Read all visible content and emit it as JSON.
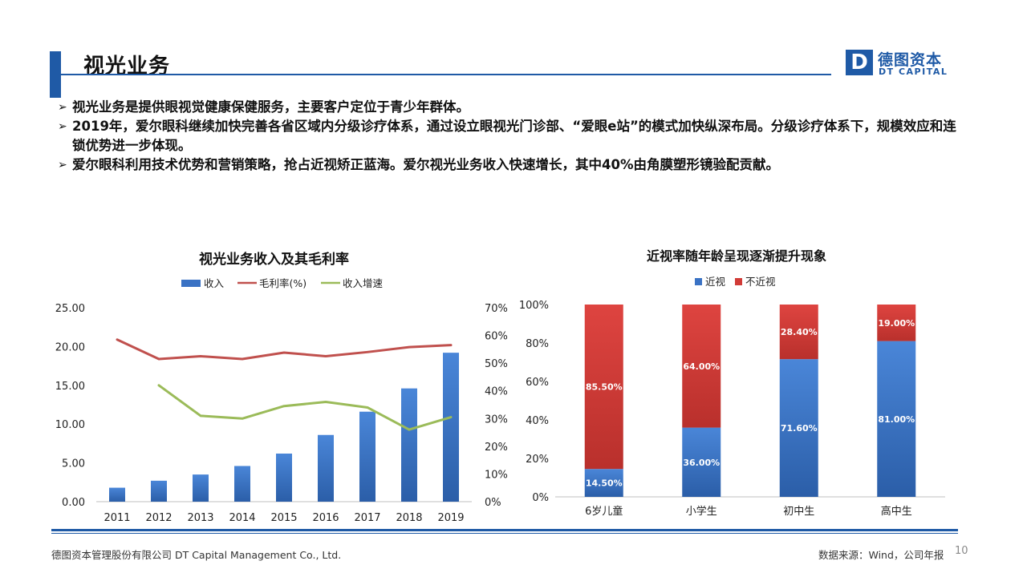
{
  "header": {
    "title": "视光业务",
    "logo_mark": "D",
    "logo_cn": "德图资本",
    "logo_en": "DT CAPITAL"
  },
  "bullets": [
    {
      "mark": "➢",
      "text": "视光业务是提供眼视觉健康保健服务，主要客户定位于青少年群体。"
    },
    {
      "mark": "➢",
      "text": "2019年，爱尔眼科继续加快完善各省区域内分级诊疗体系，通过设立眼视光门诊部、“爱眼e站”的模式加快纵深布局。分级诊疗体系下，规模效应和连锁优势进一步体现。"
    },
    {
      "mark": "➢",
      "text": "爱尔眼科利用技术优势和营销策略，抢占近视矫正蓝海。爱尔视光业务收入快速增长，其中40%由角膜塑形镜验配贡献。"
    }
  ],
  "colors": {
    "accent": "#1f5aa6",
    "bar_blue": "#3a72c4",
    "bar_red": "#d13b37",
    "line_red": "#c0504d",
    "line_green": "#9bbb59"
  },
  "chart_data": [
    {
      "type": "bar",
      "title": "视光业务收入及其毛利率",
      "categories": [
        "2011",
        "2012",
        "2013",
        "2014",
        "2015",
        "2016",
        "2017",
        "2018",
        "2019"
      ],
      "y_ticks": [
        "0.00",
        "5.00",
        "10.00",
        "15.00",
        "20.00",
        "25.00"
      ],
      "y2_ticks": [
        "0%",
        "10%",
        "20%",
        "30%",
        "40%",
        "50%",
        "60%",
        "70%"
      ],
      "ylim": [
        0,
        25
      ],
      "y2lim": [
        0,
        70
      ],
      "legend_position": "top",
      "series": [
        {
          "name": "收入",
          "type": "bar",
          "axis": "left",
          "values": [
            1.8,
            2.7,
            3.5,
            4.6,
            6.2,
            8.6,
            11.6,
            14.6,
            19.2
          ]
        },
        {
          "name": "毛利率(%)",
          "type": "line",
          "axis": "right",
          "values": [
            58.5,
            51.5,
            52.5,
            51.5,
            53.8,
            52.5,
            54.0,
            55.8,
            56.5
          ]
        },
        {
          "name": "收入增速",
          "type": "line",
          "axis": "right",
          "values": [
            null,
            42.0,
            31.0,
            30.0,
            34.5,
            36.0,
            34.0,
            26.0,
            30.5
          ]
        }
      ]
    },
    {
      "type": "bar",
      "stacked": true,
      "title": "近视率随年龄呈现逐渐提升现象",
      "categories": [
        "6岁儿童",
        "小学生",
        "初中生",
        "高中生"
      ],
      "y_ticks": [
        "0%",
        "20%",
        "40%",
        "60%",
        "80%",
        "100%"
      ],
      "ylim": [
        0,
        100
      ],
      "legend_position": "top",
      "series": [
        {
          "name": "近视",
          "values": [
            14.5,
            36.0,
            71.6,
            81.0
          ],
          "labels": [
            "14.50%",
            "36.00%",
            "71.60%",
            "81.00%"
          ]
        },
        {
          "name": "不近视",
          "values": [
            85.5,
            64.0,
            28.4,
            19.0
          ],
          "labels": [
            "85.50%",
            "64.00%",
            "28.40%",
            "19.00%"
          ]
        }
      ]
    }
  ],
  "footer": {
    "company": "德图资本管理股份有限公司  DT Capital Management  Co., Ltd.",
    "source": "数据来源：Wind，公司年报",
    "page": "10"
  }
}
